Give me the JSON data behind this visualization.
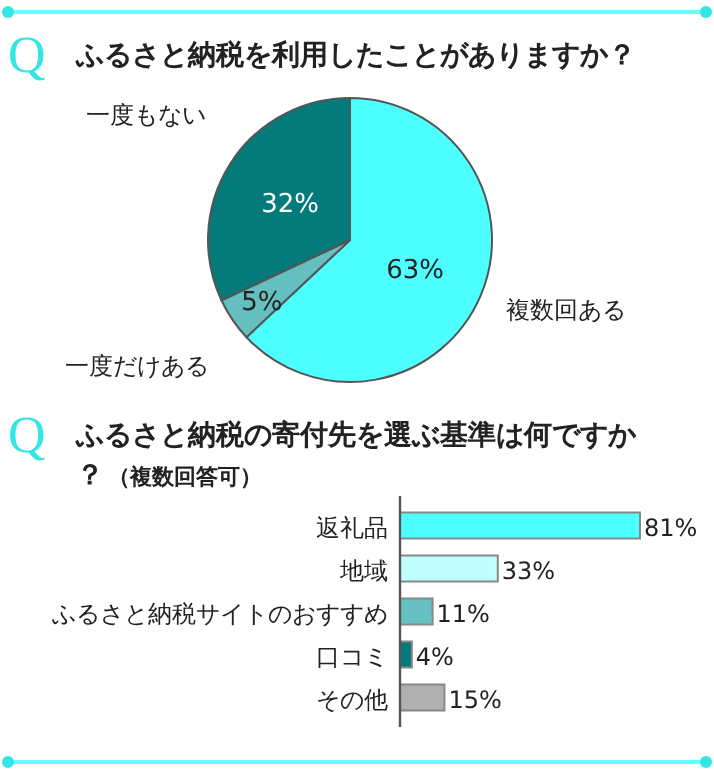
{
  "chart_data": [
    {
      "type": "pie",
      "title": "ふるさと納税を利用したことがありますか？",
      "annotations": [
        "Q"
      ],
      "categories": [
        "複数回ある",
        "一度だけある",
        "一度もない"
      ],
      "values": [
        63,
        5,
        32
      ],
      "colors": [
        "#4dffff",
        "#66bfbf",
        "#047a7a"
      ],
      "value_labels": [
        "63%",
        "5%",
        "32%"
      ]
    },
    {
      "type": "bar",
      "orientation": "horizontal",
      "title": "ふるさと納税の寄付先を選ぶ基準は何ですか？",
      "subtitle": "（複数回答可）",
      "annotations": [
        "Q"
      ],
      "categories": [
        "返礼品",
        "地域",
        "ふるさと納税サイトのおすすめ",
        "口コミ",
        "その他"
      ],
      "values": [
        81,
        33,
        11,
        4,
        15
      ],
      "colors": [
        "#4dffff",
        "#bfffff",
        "#66c2c2",
        "#047a7a",
        "#b0b0b0"
      ],
      "value_labels": [
        "81%",
        "33%",
        "11%",
        "4%",
        "15%"
      ]
    }
  ]
}
